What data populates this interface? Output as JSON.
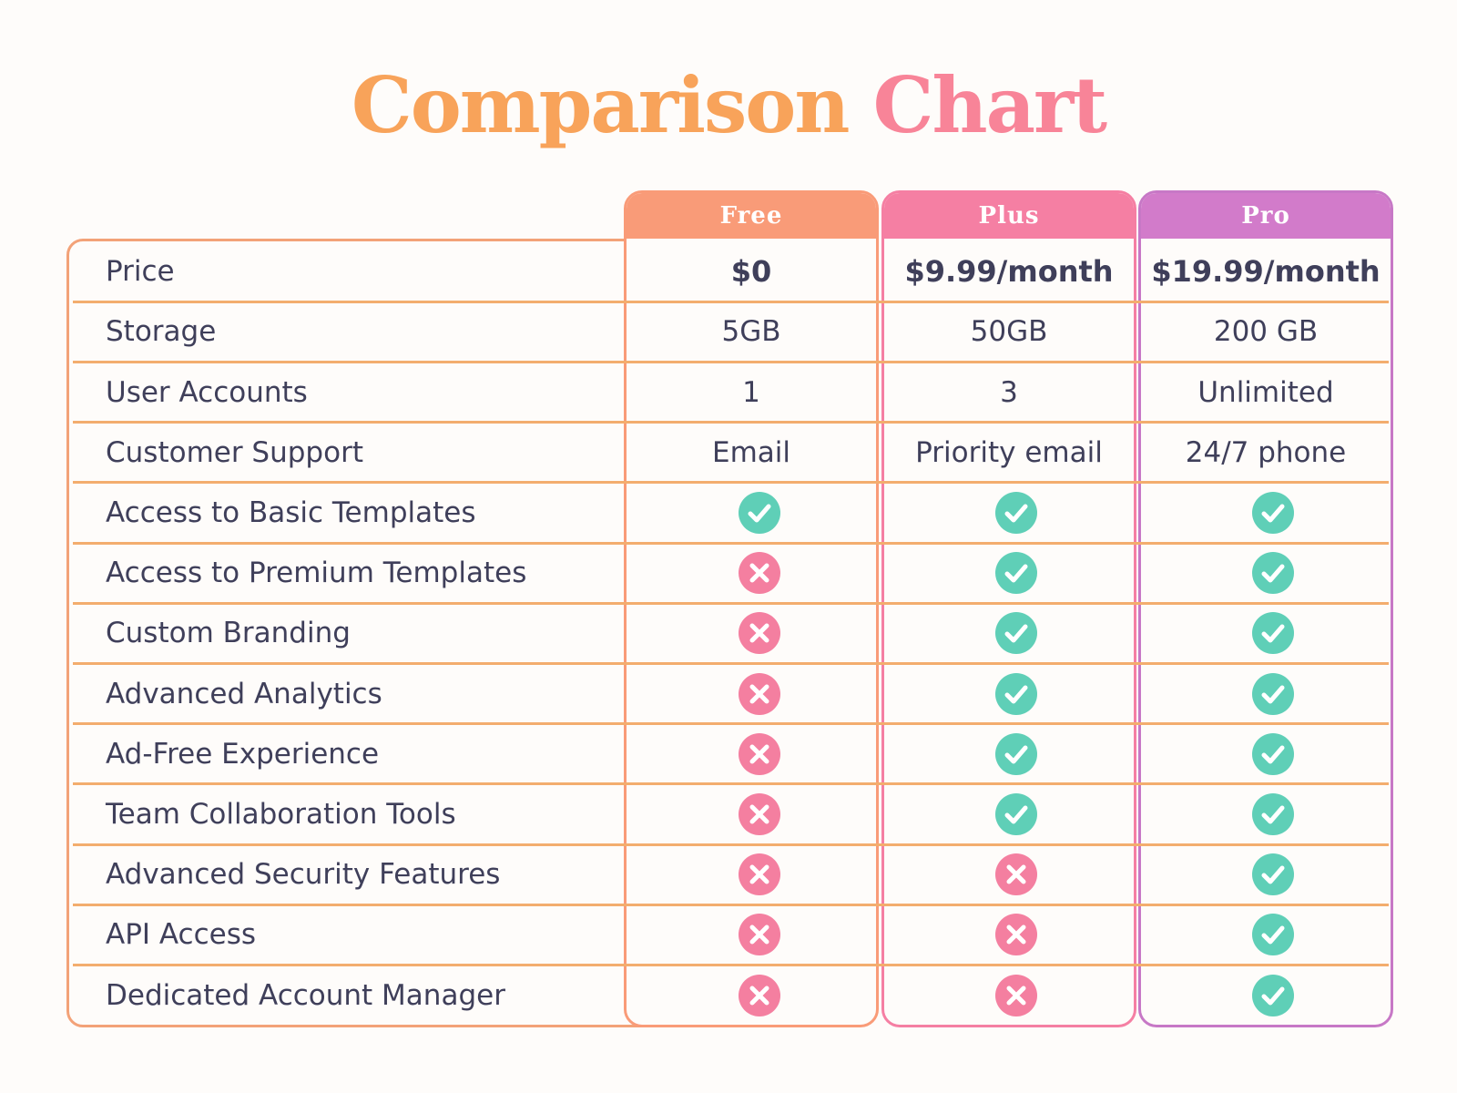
{
  "title": {
    "part1": "Comparison",
    "part2": "Chart"
  },
  "plans": [
    "Free",
    "Plus",
    "Pro"
  ],
  "rows": [
    {
      "label": "Price",
      "values": [
        "$0",
        "$9.99/month",
        "$19.99/month"
      ],
      "bold": true
    },
    {
      "label": "Storage",
      "values": [
        "5GB",
        "50GB",
        "200 GB"
      ]
    },
    {
      "label": "User Accounts",
      "values": [
        "1",
        "3",
        "Unlimited"
      ]
    },
    {
      "label": "Customer Support",
      "values": [
        "Email",
        "Priority email",
        "24/7 phone"
      ]
    },
    {
      "label": "Access to Basic Templates",
      "values": [
        true,
        true,
        true
      ]
    },
    {
      "label": "Access to Premium Templates",
      "values": [
        false,
        true,
        true
      ]
    },
    {
      "label": "Custom Branding",
      "values": [
        false,
        true,
        true
      ]
    },
    {
      "label": "Advanced Analytics",
      "values": [
        false,
        true,
        true
      ]
    },
    {
      "label": "Ad-Free Experience",
      "values": [
        false,
        true,
        true
      ]
    },
    {
      "label": "Team Collaboration Tools",
      "values": [
        false,
        true,
        true
      ]
    },
    {
      "label": "Advanced Security Features",
      "values": [
        false,
        false,
        true
      ]
    },
    {
      "label": "API Access",
      "values": [
        false,
        false,
        true
      ]
    },
    {
      "label": "Dedicated Account Manager",
      "values": [
        false,
        false,
        true
      ]
    }
  ],
  "icons": {
    "included": "check-circle-icon",
    "excluded": "x-circle-icon"
  },
  "colors": {
    "free": "#f99b78",
    "plus": "#f57fa3",
    "pro": "#d27bca",
    "check": "#5fcfb7",
    "cross": "#f47fa0"
  }
}
